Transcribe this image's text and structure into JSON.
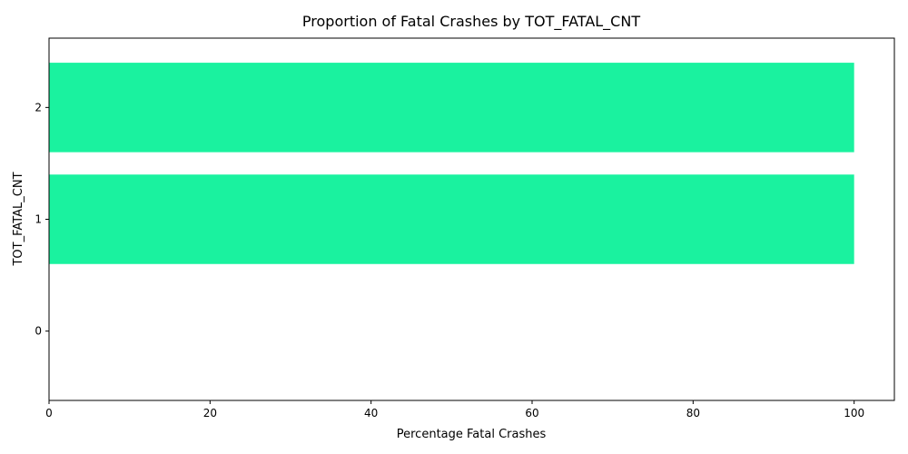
{
  "chart_data": {
    "type": "bar",
    "orientation": "horizontal",
    "title": "Proportion of Fatal Crashes by TOT_FATAL_CNT",
    "xlabel": "Percentage Fatal Crashes",
    "ylabel": "TOT_FATAL_CNT",
    "categories": [
      "0",
      "1",
      "2"
    ],
    "values": [
      0,
      100,
      100
    ],
    "xlim": [
      0,
      105
    ],
    "xticks": [
      0,
      20,
      40,
      60,
      80,
      100
    ],
    "grid": false,
    "bar_color": "#1af29f"
  }
}
